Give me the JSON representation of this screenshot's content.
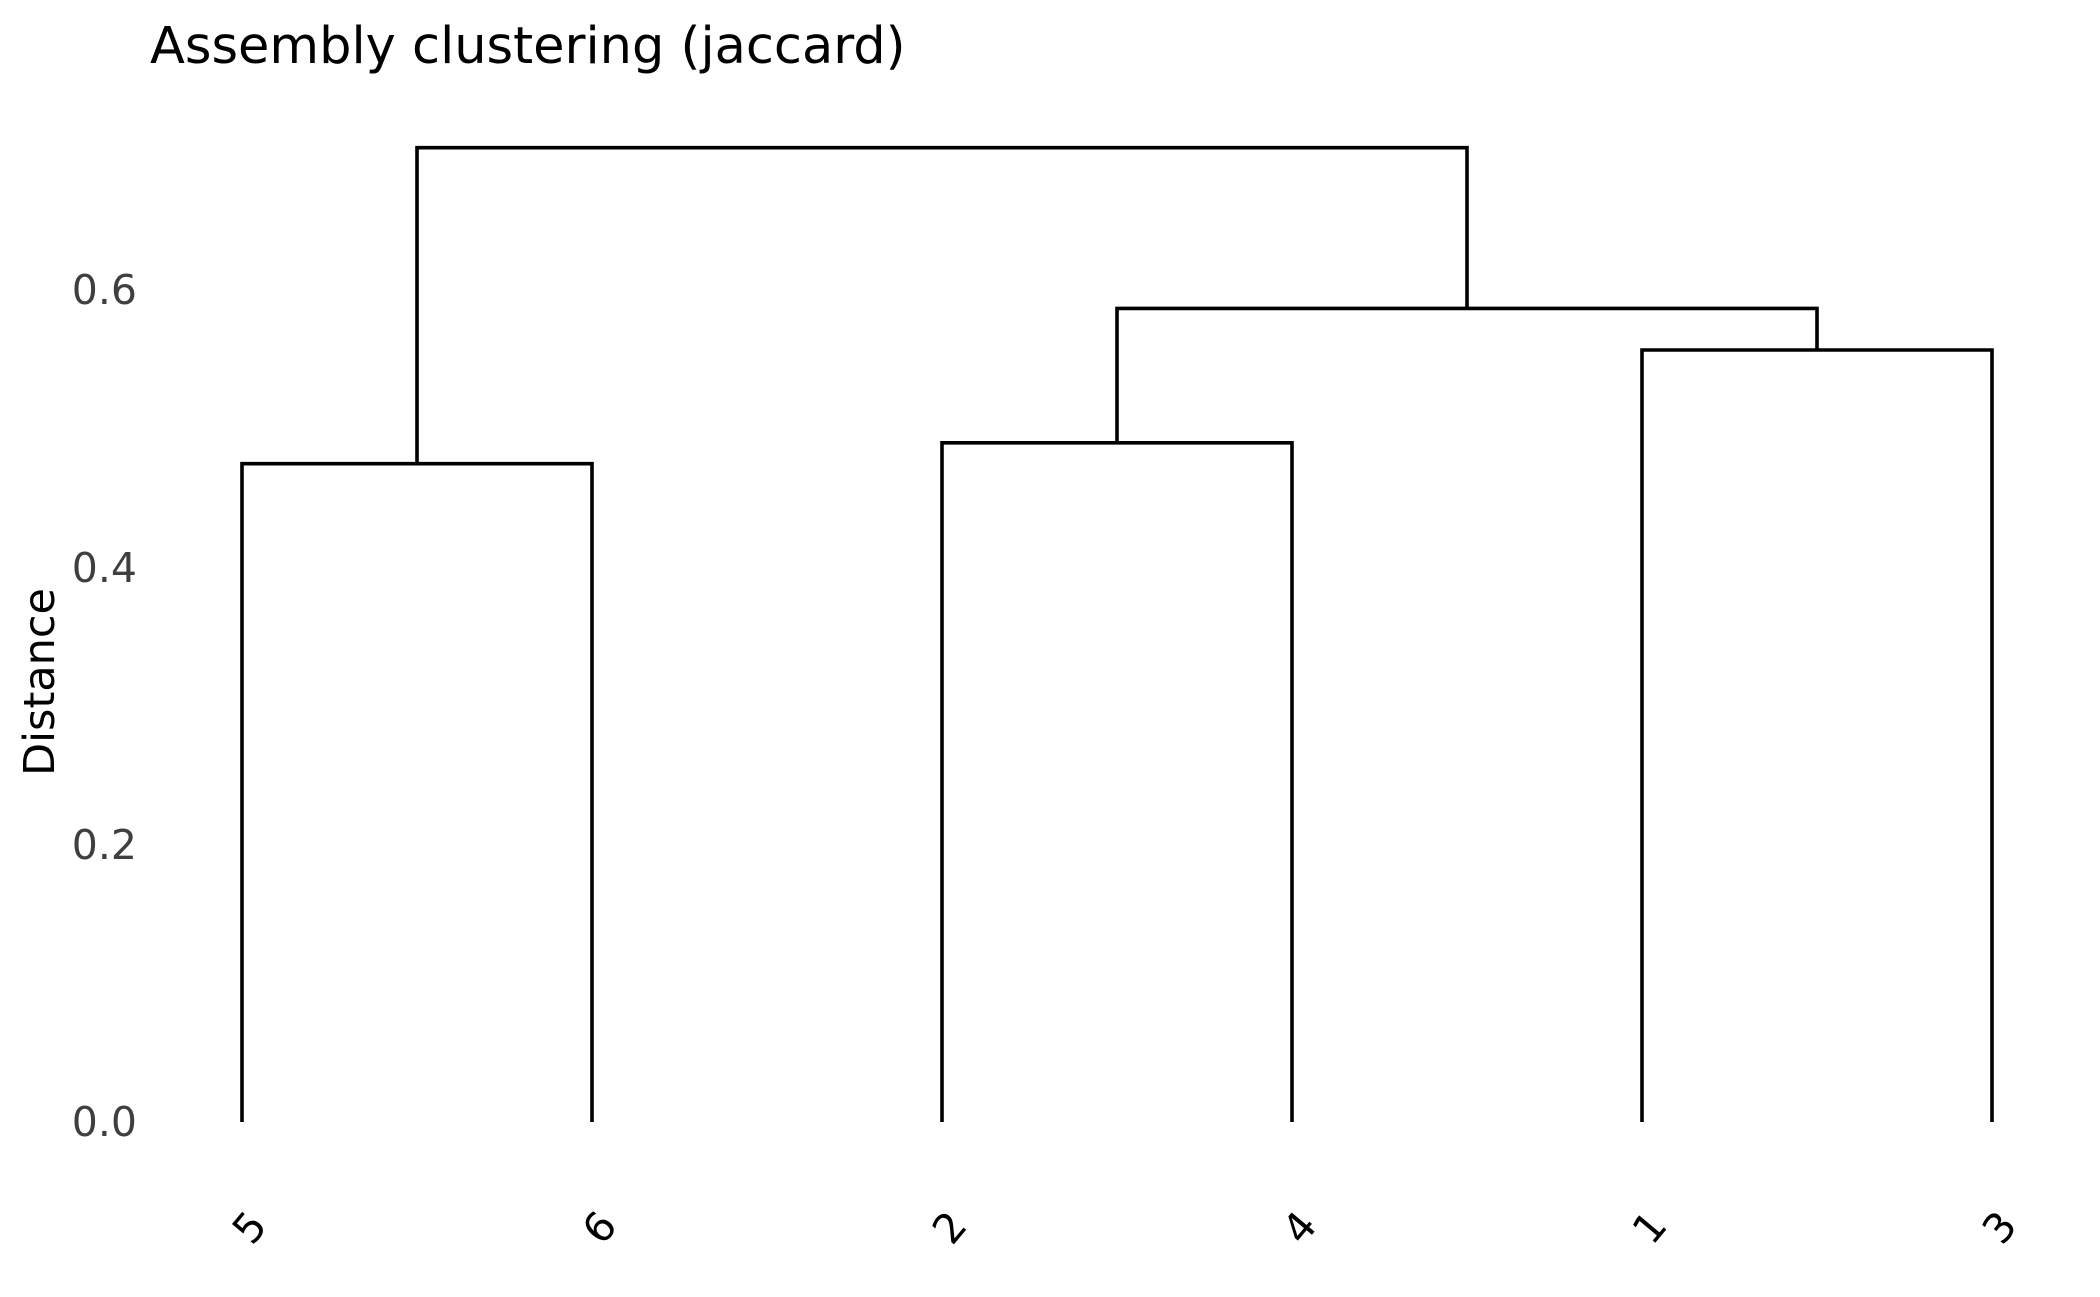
{
  "chart_data": {
    "type": "dendrogram",
    "title": "Assembly clustering (jaccard)",
    "ylabel": "Distance",
    "xlabel": "",
    "leaf_order": [
      "5",
      "6",
      "2",
      "4",
      "1",
      "3"
    ],
    "yticks": [
      0.0,
      0.2,
      0.4,
      0.6
    ],
    "ytick_labels": [
      "0.0",
      "0.2",
      "0.4",
      "0.6"
    ],
    "ylim": [
      0.0,
      0.72
    ],
    "merges": [
      {
        "children": [
          "5",
          "6"
        ],
        "height": 0.475
      },
      {
        "children": [
          "2",
          "4"
        ],
        "height": 0.49
      },
      {
        "children": [
          "1",
          "3"
        ],
        "height": 0.557
      },
      {
        "children": [
          1,
          2
        ],
        "height": 0.587
      },
      {
        "children": [
          0,
          3
        ],
        "height": 0.703
      }
    ],
    "line_color": "#000000",
    "leaf_label_color": "#000000",
    "ytick_label_color": "#3f3f3f",
    "title_color": "#000000",
    "ylabel_color": "#000000",
    "background_color": "#ffffff",
    "leaf_rotation_deg": 50,
    "grid": false,
    "legend": false,
    "spines": false
  }
}
